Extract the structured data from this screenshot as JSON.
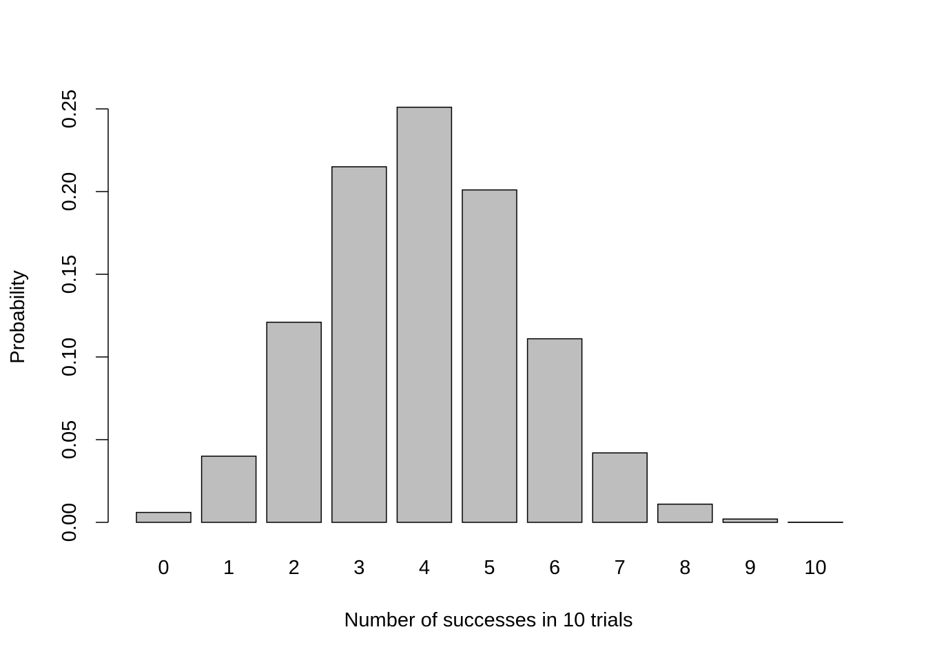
{
  "chart_data": {
    "type": "bar",
    "title": "",
    "xlabel": "Number of successes in 10 trials",
    "ylabel": "Probability",
    "categories": [
      "0",
      "1",
      "2",
      "3",
      "4",
      "5",
      "6",
      "7",
      "8",
      "9",
      "10"
    ],
    "values": [
      0.006,
      0.04,
      0.121,
      0.215,
      0.251,
      0.201,
      0.111,
      0.042,
      0.011,
      0.002,
      0.0001
    ],
    "ylim": [
      0,
      0.25
    ],
    "yticks": [
      0.0,
      0.05,
      0.1,
      0.15,
      0.2,
      0.25
    ],
    "ytick_labels": [
      "0.00",
      "0.05",
      "0.10",
      "0.15",
      "0.20",
      "0.25"
    ],
    "grid": false,
    "legend": "none",
    "bar_fill": "#bebebe",
    "bar_stroke": "#000000"
  }
}
